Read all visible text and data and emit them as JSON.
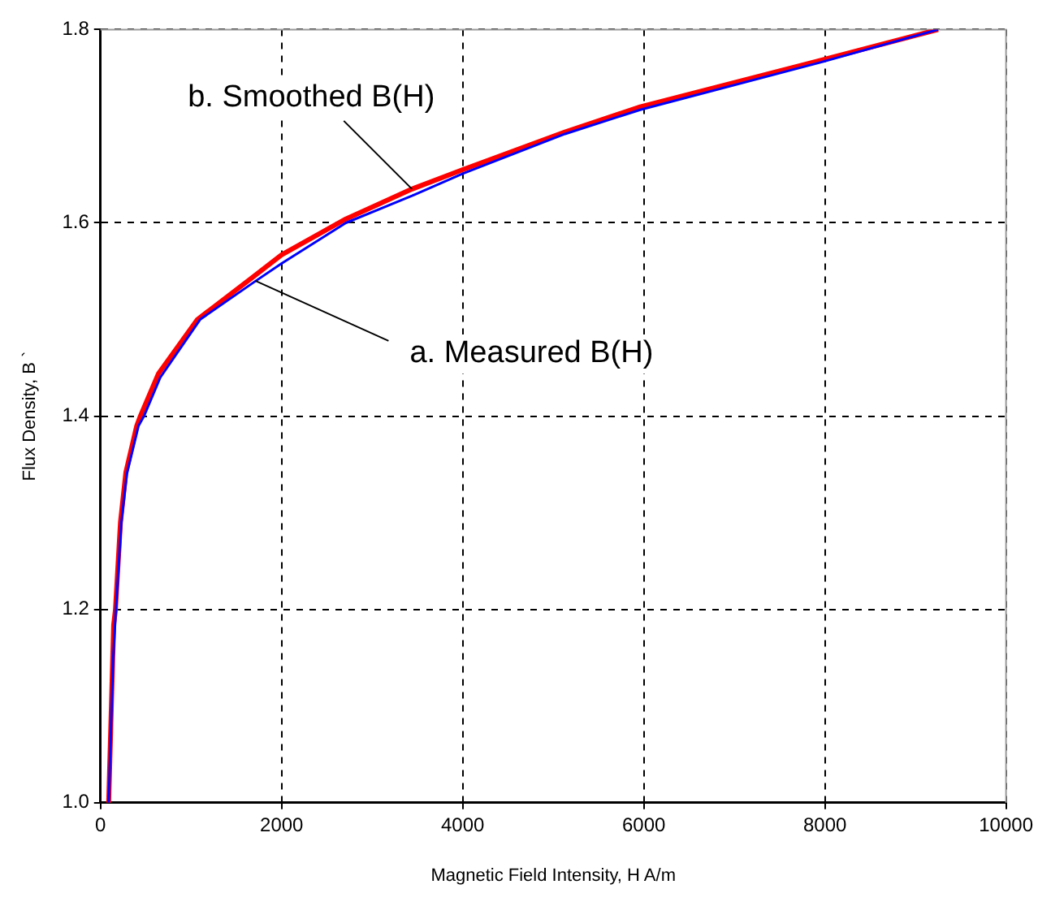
{
  "chart_data": {
    "type": "line",
    "xlabel": "Magnetic Field Intensity, H A/m",
    "ylabel": "Flux Density, B `",
    "series": [
      {
        "color": "#0000ff",
        "x": [
          90,
          140,
          170,
          230,
          290,
          420,
          480,
          660,
          1100,
          1700,
          2000,
          2710,
          3440,
          4000,
          5130,
          5960,
          7950,
          9250
        ],
        "values": [
          1.0,
          1.15,
          1.2,
          1.29,
          1.34,
          1.39,
          1.4,
          1.44,
          1.5,
          1.539,
          1.558,
          1.6,
          1.628,
          1.651,
          1.692,
          1.717,
          1.766,
          1.8
        ]
      },
      {
        "color": "#ff0000",
        "x": [
          90,
          145,
          165,
          220,
          280,
          400,
          440,
          640,
          1070,
          1670,
          2000,
          2710,
          3440,
          4000,
          5130,
          5960,
          7950,
          9250
        ],
        "values": [
          1.0,
          1.184,
          1.2,
          1.29,
          1.342,
          1.39,
          1.4,
          1.444,
          1.5,
          1.543,
          1.567,
          1.604,
          1.635,
          1.655,
          1.694,
          1.72,
          1.768,
          1.8
        ]
      }
    ],
    "xlim": [
      0,
      10000
    ],
    "xticks": [
      0,
      2000,
      4000,
      6000,
      8000,
      10000
    ],
    "ylim": [
      1.0,
      1.8
    ],
    "yticks": [
      {
        "value": 1.0,
        "label": "1.0"
      },
      {
        "value": 1.2,
        "label": "1.2"
      },
      {
        "value": 1.4,
        "label": "1.4"
      },
      {
        "value": 1.6,
        "label": "1.6"
      },
      {
        "value": 1.8,
        "label": "1.8"
      }
    ],
    "grid": true,
    "legend": false,
    "marker": "none",
    "line_style": "solid",
    "annotations": [
      {
        "text": "b. Smoothed B(H)",
        "x": 3440,
        "y": 1.635
      },
      {
        "text": "a. Measured B(H)",
        "x": 1710,
        "y": 1.54
      }
    ]
  }
}
